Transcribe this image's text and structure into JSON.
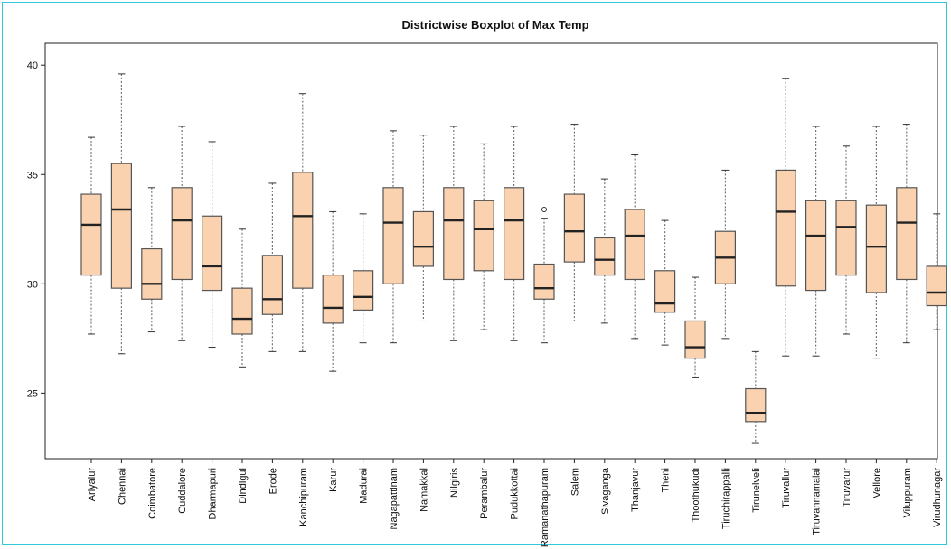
{
  "chart_data": {
    "type": "boxplot",
    "title": "Districtwise Boxplot of Max Temp",
    "xlabel": "",
    "ylabel": "",
    "ylim": [
      22.0,
      41.0
    ],
    "yticks": [
      25,
      30,
      35,
      40
    ],
    "grid": false,
    "colors": {
      "box_fill": "#fbd2b0",
      "box_stroke": "#555555",
      "median": "#222222",
      "whisker": "#777777",
      "frame": "#33c8d8"
    },
    "categories": [
      "Ariyalur",
      "Chennai",
      "Coimbatore",
      "Cuddalore",
      "Dharmapuri",
      "Dindigul",
      "Erode",
      "Kanchipuram",
      "Karur",
      "Madurai",
      "Nagapattinam",
      "Namakkal",
      "Nilgiris",
      "Perambalur",
      "Pudukkottai",
      "Ramanathapuram",
      "Salem",
      "Sivaganga",
      "Thanjavur",
      "Theni",
      "Thoothukudi",
      "Tiruchirappalli",
      "Tirunelveli",
      "Tiruvallur",
      "Tiruvannamalai",
      "Tiruvarur",
      "Vellore",
      "Viluppuram",
      "Virudhunagar"
    ],
    "stats": [
      {
        "min": 27.7,
        "q1": 30.4,
        "median": 32.7,
        "q3": 34.1,
        "max": 36.7
      },
      {
        "min": 26.8,
        "q1": 29.8,
        "median": 33.4,
        "q3": 35.5,
        "max": 39.6
      },
      {
        "min": 27.8,
        "q1": 29.3,
        "median": 30.0,
        "q3": 31.6,
        "max": 34.4
      },
      {
        "min": 27.4,
        "q1": 30.2,
        "median": 32.9,
        "q3": 34.4,
        "max": 37.2
      },
      {
        "min": 27.1,
        "q1": 29.7,
        "median": 30.8,
        "q3": 33.1,
        "max": 36.5
      },
      {
        "min": 26.2,
        "q1": 27.7,
        "median": 28.4,
        "q3": 29.8,
        "max": 32.5
      },
      {
        "min": 26.9,
        "q1": 28.6,
        "median": 29.3,
        "q3": 31.3,
        "max": 34.6
      },
      {
        "min": 26.9,
        "q1": 29.8,
        "median": 33.1,
        "q3": 35.1,
        "max": 38.7
      },
      {
        "min": 26.0,
        "q1": 28.2,
        "median": 28.9,
        "q3": 30.4,
        "max": 33.3
      },
      {
        "min": 27.3,
        "q1": 28.8,
        "median": 29.4,
        "q3": 30.6,
        "max": 33.2
      },
      {
        "min": 27.3,
        "q1": 30.0,
        "median": 32.8,
        "q3": 34.4,
        "max": 37.0
      },
      {
        "min": 28.3,
        "q1": 30.8,
        "median": 31.7,
        "q3": 33.3,
        "max": 36.8
      },
      {
        "min": 27.4,
        "q1": 30.2,
        "median": 32.9,
        "q3": 34.4,
        "max": 37.2
      },
      {
        "min": 27.9,
        "q1": 30.6,
        "median": 32.5,
        "q3": 33.8,
        "max": 36.4
      },
      {
        "min": 27.4,
        "q1": 30.2,
        "median": 32.9,
        "q3": 34.4,
        "max": 37.2
      },
      {
        "min": 27.3,
        "q1": 29.3,
        "median": 29.8,
        "q3": 30.9,
        "max": 33.0,
        "outliers": [
          33.4
        ]
      },
      {
        "min": 28.3,
        "q1": 31.0,
        "median": 32.4,
        "q3": 34.1,
        "max": 37.3
      },
      {
        "min": 28.2,
        "q1": 30.4,
        "median": 31.1,
        "q3": 32.1,
        "max": 34.8
      },
      {
        "min": 27.5,
        "q1": 30.2,
        "median": 32.2,
        "q3": 33.4,
        "max": 35.9
      },
      {
        "min": 27.2,
        "q1": 28.7,
        "median": 29.1,
        "q3": 30.6,
        "max": 32.9
      },
      {
        "min": 25.7,
        "q1": 26.6,
        "median": 27.1,
        "q3": 28.3,
        "max": 30.3
      },
      {
        "min": 27.5,
        "q1": 30.0,
        "median": 31.2,
        "q3": 32.4,
        "max": 35.2
      },
      {
        "min": 22.7,
        "q1": 23.7,
        "median": 24.1,
        "q3": 25.2,
        "max": 26.9
      },
      {
        "min": 26.7,
        "q1": 29.9,
        "median": 33.3,
        "q3": 35.2,
        "max": 39.4
      },
      {
        "min": 26.7,
        "q1": 29.7,
        "median": 32.2,
        "q3": 33.8,
        "max": 37.2
      },
      {
        "min": 27.7,
        "q1": 30.4,
        "median": 32.6,
        "q3": 33.8,
        "max": 36.3
      },
      {
        "min": 26.6,
        "q1": 29.6,
        "median": 31.7,
        "q3": 33.6,
        "max": 37.2
      },
      {
        "min": 27.3,
        "q1": 30.2,
        "median": 32.8,
        "q3": 34.4,
        "max": 37.3
      },
      {
        "min": 27.9,
        "q1": 29.0,
        "median": 29.6,
        "q3": 30.8,
        "max": 33.2
      }
    ]
  }
}
